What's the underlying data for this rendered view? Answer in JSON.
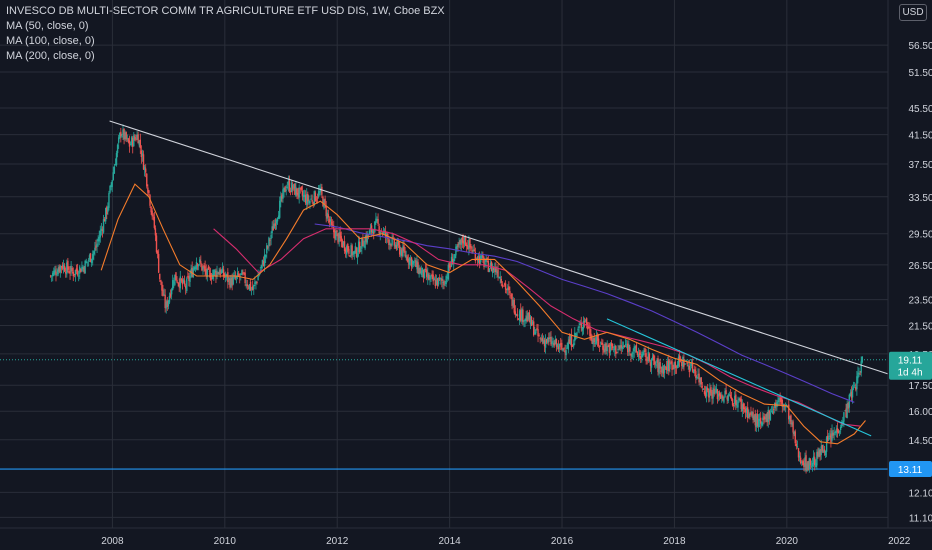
{
  "chart_data": {
    "type": "candlestick",
    "title": "INVESCO DB MULTI-SECTOR COMM TR AGRICULTURE ETF USD DIS, 1W, Cboe BZX",
    "currency": "USD",
    "indicators": [
      "MA (50, close, 0)",
      "MA (100, close, 0)",
      "MA (200, close, 0)"
    ],
    "y_axis": {
      "scale": "log",
      "ylim": [
        10.7,
        66.0
      ],
      "ticks": [
        11.1,
        12.1,
        13.11,
        14.5,
        16.0,
        17.5,
        19.5,
        21.5,
        23.5,
        26.5,
        29.5,
        33.5,
        37.5,
        41.5,
        45.5,
        51.5,
        56.5
      ]
    },
    "x_axis": {
      "range": [
        2006.0,
        2021.8
      ],
      "tick_labels": [
        "2008",
        "2010",
        "2012",
        "2014",
        "2016",
        "2018",
        "2020",
        "2022"
      ],
      "tick_values": [
        2008,
        2010,
        2012,
        2014,
        2016,
        2018,
        2020,
        2022
      ]
    },
    "last_price": {
      "value": "19.11",
      "countdown": "1d 4h",
      "color": "#26a69a"
    },
    "horizontal_line": {
      "value": "13.11",
      "color": "#2196f3"
    },
    "trendlines": [
      {
        "name": "resistance",
        "color": "#d1d4dc",
        "points": [
          [
            2007.95,
            43.5
          ],
          [
            2021.8,
            18.2
          ]
        ]
      },
      {
        "name": "channel",
        "color": "#26c6da",
        "points": [
          [
            2016.8,
            22.0
          ],
          [
            2021.5,
            14.7
          ]
        ]
      }
    ],
    "price_path": [
      [
        2006.9,
        25.5
      ],
      [
        2007.1,
        26.5
      ],
      [
        2007.3,
        25.8
      ],
      [
        2007.5,
        26.4
      ],
      [
        2007.7,
        28.0
      ],
      [
        2007.9,
        32.0
      ],
      [
        2008.05,
        38.0
      ],
      [
        2008.15,
        42.0
      ],
      [
        2008.3,
        40.0
      ],
      [
        2008.45,
        41.5
      ],
      [
        2008.6,
        36.0
      ],
      [
        2008.75,
        30.0
      ],
      [
        2008.85,
        25.0
      ],
      [
        2008.95,
        22.8
      ],
      [
        2009.1,
        25.5
      ],
      [
        2009.3,
        24.5
      ],
      [
        2009.5,
        27.0
      ],
      [
        2009.7,
        25.5
      ],
      [
        2009.9,
        26.0
      ],
      [
        2010.1,
        25.0
      ],
      [
        2010.3,
        25.5
      ],
      [
        2010.5,
        24.3
      ],
      [
        2010.7,
        27.0
      ],
      [
        2010.9,
        31.0
      ],
      [
        2011.1,
        35.0
      ],
      [
        2011.3,
        34.0
      ],
      [
        2011.5,
        33.0
      ],
      [
        2011.7,
        34.0
      ],
      [
        2011.9,
        30.0
      ],
      [
        2012.1,
        28.5
      ],
      [
        2012.3,
        27.5
      ],
      [
        2012.5,
        29.0
      ],
      [
        2012.7,
        30.5
      ],
      [
        2012.9,
        29.0
      ],
      [
        2013.1,
        28.0
      ],
      [
        2013.3,
        27.0
      ],
      [
        2013.5,
        25.8
      ],
      [
        2013.7,
        25.0
      ],
      [
        2013.9,
        25.0
      ],
      [
        2014.05,
        27.0
      ],
      [
        2014.25,
        29.0
      ],
      [
        2014.45,
        27.5
      ],
      [
        2014.65,
        26.5
      ],
      [
        2014.85,
        26.0
      ],
      [
        2015.0,
        24.5
      ],
      [
        2015.2,
        22.5
      ],
      [
        2015.4,
        22.0
      ],
      [
        2015.6,
        20.5
      ],
      [
        2015.8,
        20.3
      ],
      [
        2016.0,
        19.8
      ],
      [
        2016.2,
        20.5
      ],
      [
        2016.4,
        22.0
      ],
      [
        2016.55,
        20.5
      ],
      [
        2016.75,
        20.0
      ],
      [
        2016.95,
        19.8
      ],
      [
        2017.15,
        20.0
      ],
      [
        2017.35,
        19.5
      ],
      [
        2017.55,
        19.2
      ],
      [
        2017.75,
        18.5
      ],
      [
        2017.95,
        18.8
      ],
      [
        2018.15,
        19.0
      ],
      [
        2018.35,
        18.5
      ],
      [
        2018.55,
        17.2
      ],
      [
        2018.75,
        17.0
      ],
      [
        2018.95,
        16.8
      ],
      [
        2019.15,
        16.5
      ],
      [
        2019.35,
        15.8
      ],
      [
        2019.55,
        15.2
      ],
      [
        2019.7,
        16.0
      ],
      [
        2019.85,
        16.6
      ],
      [
        2020.0,
        16.2
      ],
      [
        2020.1,
        15.0
      ],
      [
        2020.2,
        13.8
      ],
      [
        2020.35,
        13.3
      ],
      [
        2020.5,
        13.5
      ],
      [
        2020.7,
        14.3
      ],
      [
        2020.9,
        15.0
      ],
      [
        2021.05,
        16.0
      ],
      [
        2021.15,
        17.0
      ],
      [
        2021.25,
        17.8
      ],
      [
        2021.35,
        19.11
      ]
    ],
    "ma50_path": [
      [
        2007.8,
        26.0
      ],
      [
        2008.1,
        31.0
      ],
      [
        2008.4,
        35.0
      ],
      [
        2008.65,
        33.5
      ],
      [
        2008.9,
        30.0
      ],
      [
        2009.2,
        26.5
      ],
      [
        2009.5,
        25.5
      ],
      [
        2009.8,
        25.5
      ],
      [
        2010.2,
        25.5
      ],
      [
        2010.5,
        25.2
      ],
      [
        2010.8,
        26.5
      ],
      [
        2011.1,
        29.0
      ],
      [
        2011.4,
        32.0
      ],
      [
        2011.7,
        33.0
      ],
      [
        2012.0,
        31.5
      ],
      [
        2012.4,
        29.0
      ],
      [
        2012.8,
        29.5
      ],
      [
        2013.2,
        28.5
      ],
      [
        2013.6,
        26.5
      ],
      [
        2014.0,
        25.8
      ],
      [
        2014.4,
        27.0
      ],
      [
        2014.8,
        27.0
      ],
      [
        2015.2,
        25.0
      ],
      [
        2015.6,
        23.0
      ],
      [
        2016.0,
        21.0
      ],
      [
        2016.4,
        20.5
      ],
      [
        2016.8,
        21.0
      ],
      [
        2017.2,
        20.5
      ],
      [
        2017.6,
        19.8
      ],
      [
        2018.0,
        19.2
      ],
      [
        2018.4,
        18.8
      ],
      [
        2018.8,
        17.8
      ],
      [
        2019.2,
        17.0
      ],
      [
        2019.6,
        16.4
      ],
      [
        2020.0,
        16.3
      ],
      [
        2020.3,
        15.2
      ],
      [
        2020.6,
        14.4
      ],
      [
        2020.9,
        14.3
      ],
      [
        2021.2,
        14.8
      ],
      [
        2021.4,
        15.5
      ]
    ],
    "ma100_path": [
      [
        2009.8,
        30.0
      ],
      [
        2010.2,
        28.0
      ],
      [
        2010.6,
        25.8
      ],
      [
        2011.0,
        27.0
      ],
      [
        2011.4,
        29.0
      ],
      [
        2011.8,
        30.0
      ],
      [
        2012.2,
        30.0
      ],
      [
        2012.6,
        30.0
      ],
      [
        2013.0,
        29.5
      ],
      [
        2013.4,
        28.5
      ],
      [
        2013.8,
        27.0
      ],
      [
        2014.2,
        26.5
      ],
      [
        2014.6,
        26.5
      ],
      [
        2015.0,
        26.0
      ],
      [
        2015.4,
        24.5
      ],
      [
        2015.8,
        23.0
      ],
      [
        2016.2,
        22.0
      ],
      [
        2016.6,
        21.2
      ],
      [
        2017.0,
        20.8
      ],
      [
        2017.4,
        20.4
      ],
      [
        2017.8,
        20.0
      ],
      [
        2018.2,
        19.5
      ],
      [
        2018.6,
        18.8
      ],
      [
        2019.0,
        18.0
      ],
      [
        2019.4,
        17.4
      ],
      [
        2019.8,
        16.9
      ],
      [
        2020.2,
        16.5
      ],
      [
        2020.6,
        15.9
      ],
      [
        2021.0,
        15.3
      ],
      [
        2021.3,
        15.2
      ]
    ],
    "ma200_path": [
      [
        2011.6,
        30.5
      ],
      [
        2012.0,
        30.2
      ],
      [
        2012.4,
        29.6
      ],
      [
        2012.8,
        29.2
      ],
      [
        2013.2,
        28.8
      ],
      [
        2013.6,
        28.3
      ],
      [
        2014.0,
        28.0
      ],
      [
        2014.4,
        27.6
      ],
      [
        2014.8,
        27.3
      ],
      [
        2015.2,
        26.8
      ],
      [
        2015.6,
        26.0
      ],
      [
        2016.0,
        25.2
      ],
      [
        2016.4,
        24.6
      ],
      [
        2016.8,
        24.0
      ],
      [
        2017.2,
        23.3
      ],
      [
        2017.6,
        22.6
      ],
      [
        2018.0,
        21.8
      ],
      [
        2018.4,
        21.0
      ],
      [
        2018.8,
        20.2
      ],
      [
        2019.2,
        19.4
      ],
      [
        2019.6,
        18.8
      ],
      [
        2020.0,
        18.2
      ],
      [
        2020.4,
        17.6
      ],
      [
        2020.8,
        17.0
      ],
      [
        2021.2,
        16.5
      ]
    ],
    "colors": {
      "up": "#26a69a",
      "down": "#ef5350",
      "ma50": "#f57c2b",
      "ma100": "#d62d6e",
      "ma200": "#5b3fc9",
      "background": "#131722",
      "grid": "#2a2e39",
      "text": "#d1d4dc"
    }
  }
}
